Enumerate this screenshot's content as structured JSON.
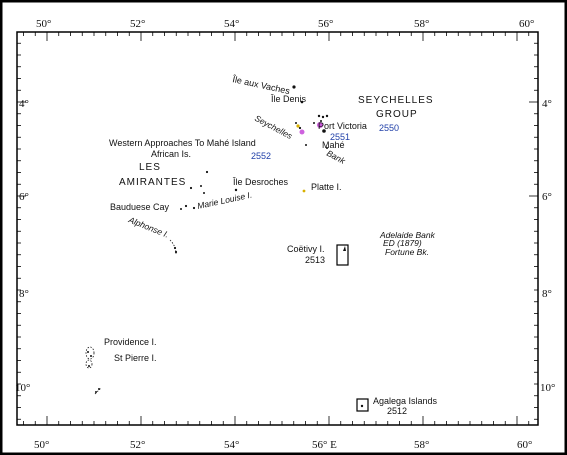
{
  "map": {
    "longitude_labels_top": [
      "50°",
      "52°",
      "54°",
      "56°",
      "58°",
      "60°"
    ],
    "longitude_labels_bottom": [
      "50°",
      "52°",
      "54°",
      "56° E",
      "58°",
      "60°"
    ],
    "latitude_labels_left": [
      "4°",
      "6°",
      "8°",
      "10°"
    ],
    "latitude_labels_right": [
      "4°",
      "6°",
      "8°",
      "10°"
    ],
    "labels": {
      "ile_aux_vaches": "Île aux Vaches",
      "ile_denis": "Île Denis",
      "seychelles": "SEYCHELLES",
      "group": "GROUP",
      "seychelles_bank_1": "Seychelles",
      "seychelles_bank_2": "Bank",
      "port_victoria": "Port Victoria",
      "mahe": "Mahé",
      "chart_2550": "2550",
      "chart_2551": "2551",
      "chart_2552": "2552",
      "western_approaches": "Western Approaches To Mahé Island",
      "african_is": "African Is.",
      "les": "LES",
      "amirantes": "AMIRANTES",
      "ile_desroches": "Île Desroches",
      "platte": "Platte I.",
      "bauduese_cay": "Bauduese Cay",
      "marie_louise": "Marie Louise I.",
      "alphonse": "Alphonse I.",
      "adelaide_bank": "Adelaide Bank",
      "adelaide_ed": "ED (1879)",
      "fortune_bk": "Fortune Bk.",
      "coetivy": "Coëtivy I.",
      "chart_2513": "2513",
      "providence": "Providence I.",
      "st_pierre": "St Pierre I.",
      "agalega": "Agalega Islands",
      "chart_2512": "2512"
    },
    "colors": {
      "ink": "#111111",
      "chart_number_blue": "#1f3fa8",
      "island_magenta": "#c23bd6",
      "island_yellow": "#d8b000"
    }
  }
}
